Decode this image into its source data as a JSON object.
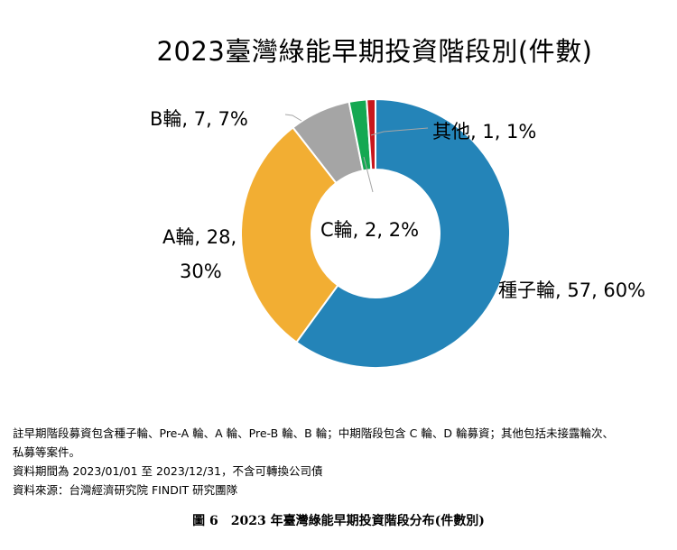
{
  "chart_data": {
    "type": "pie",
    "title": "2023臺灣綠能早期投資階段別(件數)",
    "categories": [
      "種子輪",
      "A輪",
      "B輪",
      "C輪",
      "其他"
    ],
    "values": [
      57,
      28,
      7,
      2,
      1
    ],
    "percent_labels": [
      "60%",
      "30%",
      "7%",
      "2%",
      "1%"
    ],
    "colors": [
      "#2484b8",
      "#f2ae33",
      "#a5a5a5",
      "#14a852",
      "#c8171d"
    ],
    "data_labels": {
      "seed": "種子輪, 57, 60%",
      "a_line1": "A輪, 28,",
      "a_line2": "30%",
      "b": "B輪, 7, 7%",
      "c": "C輪, 2, 2%",
      "other": "其他, 1, 1%"
    },
    "legend": "none"
  },
  "notes": {
    "line1": "註早期階段募資包含種子輪、Pre-A 輪、A 輪、Pre-B 輪、B 輪；中期階段包含 C 輪、D 輪募資；其他包括未接露輪次、",
    "line2": "私募等案件。",
    "line3": "資料期間為 2023/01/01 至 2023/12/31，不含可轉換公司債",
    "line4": "資料來源：台灣經濟研究院 FINDIT 研究團隊"
  },
  "caption": "圖 6　2023 年臺灣綠能早期投資階段分布(件數別)"
}
